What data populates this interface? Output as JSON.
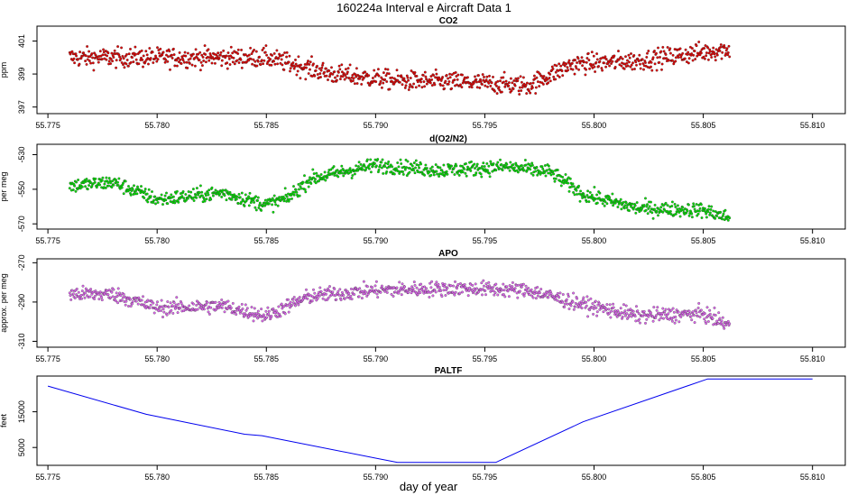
{
  "figure": {
    "title": "160224a   Interval e Aircraft Data 1",
    "xlabel": "day of year"
  },
  "chart_data": [
    {
      "type": "scatter",
      "title": "CO2",
      "ylabel": "ppm",
      "xlim": [
        55.7745,
        55.8115
      ],
      "ylim": [
        396.6,
        401.9
      ],
      "yticks": [
        397,
        399,
        401
      ],
      "xticks": [
        55.775,
        55.78,
        55.785,
        55.79,
        55.795,
        55.8,
        55.805,
        55.81
      ],
      "xtick_labels": [
        "55.775",
        "55.780",
        "55.785",
        "55.790",
        "55.795",
        "55.800",
        "55.805",
        "55.810"
      ],
      "color": "#e00000",
      "x_range": [
        55.776,
        55.8062
      ],
      "trend": [
        [
          55.776,
          400.0
        ],
        [
          55.779,
          400.0
        ],
        [
          55.785,
          400.0
        ],
        [
          55.788,
          399.0
        ],
        [
          55.791,
          398.6
        ],
        [
          55.794,
          398.5
        ],
        [
          55.797,
          398.3
        ],
        [
          55.799,
          399.6
        ],
        [
          55.802,
          399.8
        ],
        [
          55.806,
          400.5
        ]
      ],
      "spread": 0.7
    },
    {
      "type": "scatter",
      "title": "d(O2/N2)",
      "ylabel": "per meg",
      "xlim": [
        55.7745,
        55.8115
      ],
      "ylim": [
        -573,
        -524
      ],
      "yticks": [
        -530,
        -550,
        -570
      ],
      "xticks": [
        55.775,
        55.78,
        55.785,
        55.79,
        55.795,
        55.8,
        55.805,
        55.81
      ],
      "xtick_labels": [
        "55.775",
        "55.780",
        "55.785",
        "55.790",
        "55.795",
        "55.800",
        "55.805",
        "55.810"
      ],
      "color": "#00dd00",
      "x_range": [
        55.776,
        55.8062
      ],
      "trend": [
        [
          55.776,
          -548
        ],
        [
          55.778,
          -546
        ],
        [
          55.78,
          -556
        ],
        [
          55.783,
          -552
        ],
        [
          55.785,
          -559
        ],
        [
          55.786,
          -555
        ],
        [
          55.787,
          -544
        ],
        [
          55.79,
          -536
        ],
        [
          55.793,
          -539
        ],
        [
          55.796,
          -537
        ],
        [
          55.798,
          -540
        ],
        [
          55.7995,
          -553
        ],
        [
          55.802,
          -561
        ],
        [
          55.805,
          -562
        ],
        [
          55.806,
          -566
        ]
      ],
      "spread": 5
    },
    {
      "type": "scatter",
      "title": "APO",
      "ylabel": "approx. per meg",
      "xlim": [
        55.7745,
        55.8115
      ],
      "ylim": [
        -313,
        -268
      ],
      "yticks": [
        -270,
        -290,
        -310
      ],
      "xticks": [
        55.775,
        55.78,
        55.785,
        55.79,
        55.795,
        55.8,
        55.805,
        55.81
      ],
      "xtick_labels": [
        "55.775",
        "55.780",
        "55.785",
        "55.790",
        "55.795",
        "55.800",
        "55.805",
        "55.810"
      ],
      "color": "#dd66ee",
      "x_range": [
        55.776,
        55.8062
      ],
      "trend": [
        [
          55.776,
          -286
        ],
        [
          55.778,
          -286
        ],
        [
          55.78,
          -293
        ],
        [
          55.783,
          -292
        ],
        [
          55.785,
          -297
        ],
        [
          55.787,
          -287
        ],
        [
          55.79,
          -284
        ],
        [
          55.794,
          -283
        ],
        [
          55.797,
          -284
        ],
        [
          55.799,
          -290
        ],
        [
          55.802,
          -297
        ],
        [
          55.805,
          -296
        ],
        [
          55.806,
          -301
        ]
      ],
      "spread": 4.5
    },
    {
      "type": "line",
      "title": "PALTF",
      "ylabel": "feet",
      "xlim": [
        55.7745,
        55.8115
      ],
      "ylim": [
        0,
        25000
      ],
      "yticks": [
        5000,
        15000
      ],
      "xticks": [
        55.775,
        55.78,
        55.785,
        55.79,
        55.795,
        55.8,
        55.805,
        55.81
      ],
      "xtick_labels": [
        "55.775",
        "55.780",
        "55.785",
        "55.790",
        "55.795",
        "55.800",
        "55.805",
        "55.810"
      ],
      "color": "#0000ee",
      "x": [
        55.775,
        55.7795,
        55.784,
        55.7848,
        55.791,
        55.7955,
        55.7995,
        55.8052,
        55.81
      ],
      "y": [
        22200,
        14300,
        8700,
        8300,
        800,
        800,
        12200,
        24200,
        24200
      ]
    }
  ]
}
